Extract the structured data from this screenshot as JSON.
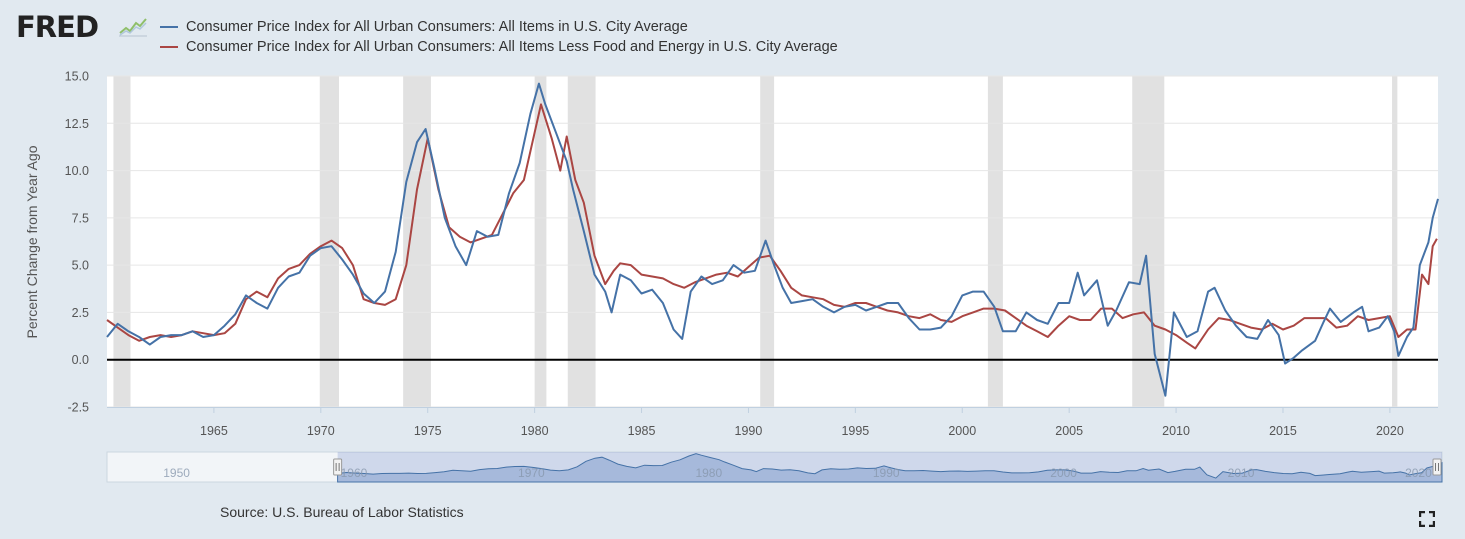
{
  "header": {
    "logo_text": "FRED",
    "logo_icon": "trend-line-icon"
  },
  "legend": {
    "placement": "top-left",
    "items": [
      {
        "label": "Consumer Price Index for All Urban Consumers: All Items in U.S. City Average",
        "color": "#4572a7"
      },
      {
        "label": "Consumer Price Index for All Urban Consumers: All Items Less Food and Energy in U.S. City Average",
        "color": "#aa4643"
      }
    ]
  },
  "footer": {
    "source": "Source: U.S. Bureau of Labor Statistics",
    "fullscreen_icon": "fullscreen-icon"
  },
  "colors": {
    "background": "#e1e9f0",
    "plot_background": "#ffffff",
    "recession_band": "#e1e1e1",
    "zero_line": "#000000",
    "navigator_fill": "#9fb4d8",
    "navigator_line": "#4572a7"
  },
  "chart_data": {
    "type": "line",
    "title": "",
    "xlabel": "",
    "ylabel": "Percent Change from Year Ago",
    "xlim": [
      1960.0,
      2022.25
    ],
    "ylim": [
      -2.5,
      15.0
    ],
    "grid": true,
    "y_ticks": [
      -2.5,
      0.0,
      2.5,
      5.0,
      7.5,
      10.0,
      12.5,
      15.0
    ],
    "y_tick_labels": [
      "-2.5",
      "0.0",
      "2.5",
      "5.0",
      "7.5",
      "10.0",
      "12.5",
      "15.0"
    ],
    "x_ticks": [
      1965,
      1970,
      1975,
      1980,
      1985,
      1990,
      1995,
      2000,
      2005,
      2010,
      2015,
      2020
    ],
    "x_tick_labels": [
      "1965",
      "1970",
      "1975",
      "1980",
      "1985",
      "1990",
      "1995",
      "2000",
      "2005",
      "2010",
      "2015",
      "2020"
    ],
    "reference_line": {
      "y": 0.0,
      "color": "#000000"
    },
    "recessions": [
      [
        1960.3,
        1961.1
      ],
      [
        1969.95,
        1970.85
      ],
      [
        1973.85,
        1975.15
      ],
      [
        1980.0,
        1980.55
      ],
      [
        1981.55,
        1982.85
      ],
      [
        1990.55,
        1991.2
      ],
      [
        2001.2,
        2001.9
      ],
      [
        2007.95,
        2009.45
      ],
      [
        2020.1,
        2020.35
      ]
    ],
    "series": [
      {
        "name": "Consumer Price Index for All Urban Consumers: All Items in U.S. City Average",
        "color": "#4572a7",
        "points": [
          [
            1960.0,
            1.2
          ],
          [
            1960.5,
            1.9
          ],
          [
            1961.0,
            1.5
          ],
          [
            1961.5,
            1.2
          ],
          [
            1962.0,
            0.8
          ],
          [
            1962.5,
            1.2
          ],
          [
            1963.0,
            1.3
          ],
          [
            1963.5,
            1.3
          ],
          [
            1964.0,
            1.5
          ],
          [
            1964.5,
            1.2
          ],
          [
            1965.0,
            1.3
          ],
          [
            1965.5,
            1.8
          ],
          [
            1966.0,
            2.4
          ],
          [
            1966.5,
            3.4
          ],
          [
            1967.0,
            3.0
          ],
          [
            1967.5,
            2.7
          ],
          [
            1968.0,
            3.8
          ],
          [
            1968.5,
            4.4
          ],
          [
            1969.0,
            4.6
          ],
          [
            1969.5,
            5.5
          ],
          [
            1970.0,
            5.9
          ],
          [
            1970.5,
            6.0
          ],
          [
            1971.0,
            5.3
          ],
          [
            1971.5,
            4.5
          ],
          [
            1972.0,
            3.5
          ],
          [
            1972.5,
            3.0
          ],
          [
            1973.0,
            3.6
          ],
          [
            1973.5,
            5.7
          ],
          [
            1974.0,
            9.4
          ],
          [
            1974.5,
            11.5
          ],
          [
            1974.9,
            12.2
          ],
          [
            1975.3,
            10.2
          ],
          [
            1975.8,
            7.5
          ],
          [
            1976.3,
            6.0
          ],
          [
            1976.8,
            5.0
          ],
          [
            1977.3,
            6.8
          ],
          [
            1977.8,
            6.5
          ],
          [
            1978.3,
            6.6
          ],
          [
            1978.8,
            8.8
          ],
          [
            1979.3,
            10.4
          ],
          [
            1979.8,
            13.0
          ],
          [
            1980.2,
            14.6
          ],
          [
            1980.5,
            13.5
          ],
          [
            1981.0,
            12.0
          ],
          [
            1981.5,
            10.5
          ],
          [
            1981.8,
            9.0
          ],
          [
            1982.3,
            6.8
          ],
          [
            1982.8,
            4.5
          ],
          [
            1983.3,
            3.6
          ],
          [
            1983.6,
            2.5
          ],
          [
            1984.0,
            4.5
          ],
          [
            1984.5,
            4.2
          ],
          [
            1985.0,
            3.5
          ],
          [
            1985.5,
            3.7
          ],
          [
            1986.0,
            3.0
          ],
          [
            1986.5,
            1.6
          ],
          [
            1986.9,
            1.1
          ],
          [
            1987.3,
            3.6
          ],
          [
            1987.8,
            4.4
          ],
          [
            1988.3,
            4.0
          ],
          [
            1988.8,
            4.2
          ],
          [
            1989.3,
            5.0
          ],
          [
            1989.8,
            4.6
          ],
          [
            1990.3,
            4.7
          ],
          [
            1990.8,
            6.3
          ],
          [
            1991.2,
            5.0
          ],
          [
            1991.6,
            3.8
          ],
          [
            1992.0,
            3.0
          ],
          [
            1992.5,
            3.1
          ],
          [
            1993.0,
            3.2
          ],
          [
            1993.5,
            2.8
          ],
          [
            1994.0,
            2.5
          ],
          [
            1994.5,
            2.8
          ],
          [
            1995.0,
            2.9
          ],
          [
            1995.5,
            2.6
          ],
          [
            1996.0,
            2.8
          ],
          [
            1996.5,
            3.0
          ],
          [
            1997.0,
            3.0
          ],
          [
            1997.5,
            2.2
          ],
          [
            1998.0,
            1.6
          ],
          [
            1998.5,
            1.6
          ],
          [
            1999.0,
            1.7
          ],
          [
            1999.5,
            2.3
          ],
          [
            2000.0,
            3.4
          ],
          [
            2000.5,
            3.6
          ],
          [
            2001.0,
            3.6
          ],
          [
            2001.5,
            2.8
          ],
          [
            2001.9,
            1.5
          ],
          [
            2002.5,
            1.5
          ],
          [
            2003.0,
            2.5
          ],
          [
            2003.5,
            2.1
          ],
          [
            2004.0,
            1.9
          ],
          [
            2004.5,
            3.0
          ],
          [
            2005.0,
            3.0
          ],
          [
            2005.4,
            4.6
          ],
          [
            2005.7,
            3.4
          ],
          [
            2006.3,
            4.2
          ],
          [
            2006.8,
            1.8
          ],
          [
            2007.2,
            2.6
          ],
          [
            2007.8,
            4.1
          ],
          [
            2008.3,
            4.0
          ],
          [
            2008.6,
            5.5
          ],
          [
            2009.0,
            0.3
          ],
          [
            2009.5,
            -1.9
          ],
          [
            2009.9,
            2.5
          ],
          [
            2010.5,
            1.2
          ],
          [
            2011.0,
            1.5
          ],
          [
            2011.5,
            3.6
          ],
          [
            2011.8,
            3.8
          ],
          [
            2012.3,
            2.6
          ],
          [
            2012.8,
            1.8
          ],
          [
            2013.3,
            1.2
          ],
          [
            2013.8,
            1.1
          ],
          [
            2014.3,
            2.1
          ],
          [
            2014.8,
            1.3
          ],
          [
            2015.1,
            -0.2
          ],
          [
            2015.5,
            0.1
          ],
          [
            2015.9,
            0.5
          ],
          [
            2016.5,
            1.0
          ],
          [
            2016.9,
            2.0
          ],
          [
            2017.2,
            2.7
          ],
          [
            2017.7,
            2.0
          ],
          [
            2018.3,
            2.5
          ],
          [
            2018.7,
            2.8
          ],
          [
            2019.0,
            1.5
          ],
          [
            2019.5,
            1.7
          ],
          [
            2019.9,
            2.3
          ],
          [
            2020.2,
            1.5
          ],
          [
            2020.4,
            0.2
          ],
          [
            2020.8,
            1.2
          ],
          [
            2021.1,
            1.7
          ],
          [
            2021.4,
            5.0
          ],
          [
            2021.8,
            6.2
          ],
          [
            2022.0,
            7.5
          ],
          [
            2022.25,
            8.5
          ]
        ]
      },
      {
        "name": "Consumer Price Index for All Urban Consumers: All Items Less Food and Energy in U.S. City Average",
        "color": "#aa4643",
        "points": [
          [
            1960.0,
            2.1
          ],
          [
            1960.5,
            1.7
          ],
          [
            1961.0,
            1.3
          ],
          [
            1961.5,
            1.0
          ],
          [
            1962.0,
            1.2
          ],
          [
            1962.5,
            1.3
          ],
          [
            1963.0,
            1.2
          ],
          [
            1963.5,
            1.3
          ],
          [
            1964.0,
            1.5
          ],
          [
            1964.5,
            1.4
          ],
          [
            1965.0,
            1.3
          ],
          [
            1965.5,
            1.4
          ],
          [
            1966.0,
            1.9
          ],
          [
            1966.5,
            3.2
          ],
          [
            1967.0,
            3.6
          ],
          [
            1967.5,
            3.3
          ],
          [
            1968.0,
            4.3
          ],
          [
            1968.5,
            4.8
          ],
          [
            1969.0,
            5.0
          ],
          [
            1969.5,
            5.6
          ],
          [
            1970.0,
            6.0
          ],
          [
            1970.5,
            6.3
          ],
          [
            1971.0,
            5.9
          ],
          [
            1971.5,
            5.0
          ],
          [
            1972.0,
            3.2
          ],
          [
            1972.5,
            3.0
          ],
          [
            1973.0,
            2.9
          ],
          [
            1973.5,
            3.2
          ],
          [
            1974.0,
            5.0
          ],
          [
            1974.5,
            9.0
          ],
          [
            1975.0,
            11.7
          ],
          [
            1975.5,
            9.0
          ],
          [
            1976.0,
            7.0
          ],
          [
            1976.5,
            6.5
          ],
          [
            1977.0,
            6.2
          ],
          [
            1977.5,
            6.4
          ],
          [
            1978.0,
            6.6
          ],
          [
            1978.5,
            7.7
          ],
          [
            1979.0,
            8.8
          ],
          [
            1979.5,
            9.5
          ],
          [
            1980.0,
            12.0
          ],
          [
            1980.3,
            13.5
          ],
          [
            1980.8,
            11.7
          ],
          [
            1981.2,
            10.0
          ],
          [
            1981.5,
            11.8
          ],
          [
            1981.9,
            9.5
          ],
          [
            1982.3,
            8.3
          ],
          [
            1982.8,
            5.5
          ],
          [
            1983.3,
            4.0
          ],
          [
            1983.7,
            4.7
          ],
          [
            1984.0,
            5.1
          ],
          [
            1984.5,
            5.0
          ],
          [
            1985.0,
            4.5
          ],
          [
            1985.5,
            4.4
          ],
          [
            1986.0,
            4.3
          ],
          [
            1986.5,
            4.0
          ],
          [
            1987.0,
            3.8
          ],
          [
            1987.5,
            4.1
          ],
          [
            1988.0,
            4.3
          ],
          [
            1988.5,
            4.5
          ],
          [
            1989.0,
            4.6
          ],
          [
            1989.5,
            4.4
          ],
          [
            1990.0,
            4.9
          ],
          [
            1990.5,
            5.4
          ],
          [
            1991.0,
            5.5
          ],
          [
            1991.5,
            4.7
          ],
          [
            1992.0,
            3.8
          ],
          [
            1992.5,
            3.4
          ],
          [
            1993.0,
            3.3
          ],
          [
            1993.5,
            3.2
          ],
          [
            1994.0,
            2.9
          ],
          [
            1994.5,
            2.8
          ],
          [
            1995.0,
            3.0
          ],
          [
            1995.5,
            3.0
          ],
          [
            1996.0,
            2.8
          ],
          [
            1996.5,
            2.6
          ],
          [
            1997.0,
            2.5
          ],
          [
            1997.5,
            2.3
          ],
          [
            1998.0,
            2.2
          ],
          [
            1998.5,
            2.4
          ],
          [
            1999.0,
            2.1
          ],
          [
            1999.5,
            2.0
          ],
          [
            2000.0,
            2.3
          ],
          [
            2000.5,
            2.5
          ],
          [
            2001.0,
            2.7
          ],
          [
            2001.5,
            2.7
          ],
          [
            2002.0,
            2.6
          ],
          [
            2002.5,
            2.2
          ],
          [
            2003.0,
            1.8
          ],
          [
            2003.5,
            1.5
          ],
          [
            2004.0,
            1.2
          ],
          [
            2004.5,
            1.8
          ],
          [
            2005.0,
            2.3
          ],
          [
            2005.5,
            2.1
          ],
          [
            2006.0,
            2.1
          ],
          [
            2006.5,
            2.7
          ],
          [
            2007.0,
            2.7
          ],
          [
            2007.5,
            2.2
          ],
          [
            2008.0,
            2.4
          ],
          [
            2008.5,
            2.5
          ],
          [
            2009.0,
            1.8
          ],
          [
            2009.5,
            1.6
          ],
          [
            2010.0,
            1.3
          ],
          [
            2010.5,
            0.9
          ],
          [
            2010.9,
            0.6
          ],
          [
            2011.5,
            1.6
          ],
          [
            2012.0,
            2.2
          ],
          [
            2012.5,
            2.1
          ],
          [
            2013.0,
            1.9
          ],
          [
            2013.5,
            1.7
          ],
          [
            2014.0,
            1.6
          ],
          [
            2014.5,
            1.9
          ],
          [
            2015.0,
            1.6
          ],
          [
            2015.5,
            1.8
          ],
          [
            2016.0,
            2.2
          ],
          [
            2016.5,
            2.2
          ],
          [
            2017.0,
            2.2
          ],
          [
            2017.5,
            1.7
          ],
          [
            2018.0,
            1.8
          ],
          [
            2018.5,
            2.3
          ],
          [
            2019.0,
            2.1
          ],
          [
            2019.5,
            2.2
          ],
          [
            2020.0,
            2.3
          ],
          [
            2020.4,
            1.2
          ],
          [
            2020.8,
            1.6
          ],
          [
            2021.2,
            1.6
          ],
          [
            2021.5,
            4.5
          ],
          [
            2021.8,
            4.0
          ],
          [
            2022.0,
            6.0
          ],
          [
            2022.2,
            6.4
          ]
        ]
      }
    ],
    "navigator": {
      "range": [
        1947.0,
        2022.25
      ],
      "selected_range": [
        1960.0,
        2022.25
      ],
      "tick_labels": [
        {
          "x": 1950,
          "label": "1950"
        },
        {
          "x": 1960,
          "label": "1960"
        },
        {
          "x": 1970,
          "label": "1970"
        },
        {
          "x": 1980,
          "label": "1980"
        },
        {
          "x": 1990,
          "label": "1990"
        },
        {
          "x": 2000,
          "label": "2000"
        },
        {
          "x": 2010,
          "label": "2010"
        },
        {
          "x": 2020,
          "label": "2020"
        }
      ]
    }
  }
}
